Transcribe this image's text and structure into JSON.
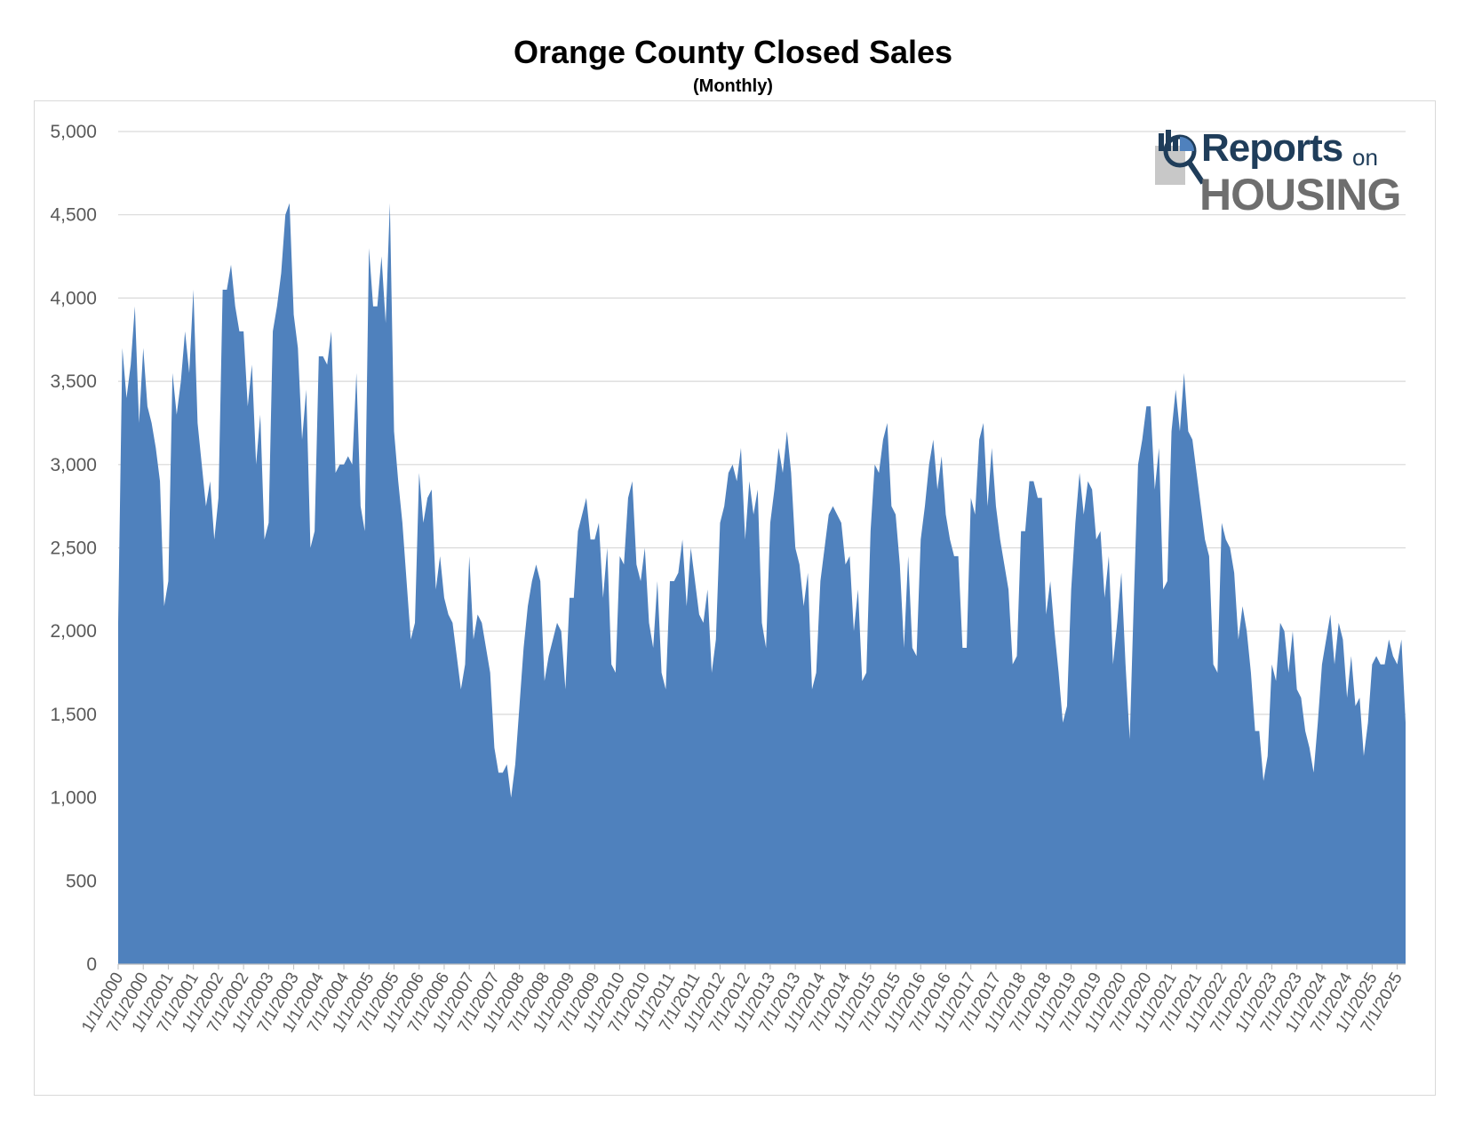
{
  "chart_data": {
    "type": "area",
    "title": "Orange County Closed Sales",
    "subtitle": "(Monthly)",
    "xlabel": "",
    "ylabel": "",
    "ylim": [
      0,
      5000
    ],
    "y_ticks": [
      "5,000",
      "4,500",
      "4,000",
      "3,500",
      "3,000",
      "2,500",
      "2,000",
      "1,500",
      "1,000",
      "500",
      "0"
    ],
    "y_tick_values": [
      5000,
      4500,
      4000,
      3500,
      3000,
      2500,
      2000,
      1500,
      1000,
      500,
      0
    ],
    "x_ticks": [
      "1/1/2000",
      "7/1/2000",
      "1/1/2001",
      "7/1/2001",
      "1/1/2002",
      "7/1/2002",
      "1/1/2003",
      "7/1/2003",
      "1/1/2004",
      "7/1/2004",
      "1/1/2005",
      "7/1/2005",
      "1/1/2006",
      "7/1/2006",
      "1/1/2007",
      "7/1/2007",
      "1/1/2008",
      "7/1/2008",
      "1/1/2009",
      "7/1/2009",
      "1/1/2010",
      "7/1/2010",
      "1/1/2011",
      "7/1/2011",
      "1/1/2012",
      "7/1/2012",
      "1/1/2013",
      "7/1/2013",
      "1/1/2014",
      "7/1/2014",
      "1/1/2015",
      "7/1/2015",
      "1/1/2016",
      "7/1/2016",
      "1/1/2017",
      "7/1/2017",
      "1/1/2018",
      "7/1/2018",
      "1/1/2019",
      "7/1/2019",
      "1/1/2020",
      "7/1/2020",
      "1/1/2021",
      "7/1/2021",
      "1/1/2022",
      "7/1/2022",
      "1/1/2023",
      "7/1/2023",
      "1/1/2024",
      "7/1/2024",
      "1/1/2025",
      "7/1/2025"
    ],
    "grid": true,
    "legend": "none",
    "color": "#4f81bd",
    "x_start": "2000-01",
    "x_end": "2025-09",
    "series": [
      {
        "values": [
          2050,
          3700,
          3400,
          3600,
          3950,
          3250,
          3700,
          3350,
          3250,
          3100,
          2900,
          2150,
          2300,
          3550,
          3300,
          3500,
          3800,
          3550,
          4050,
          3250,
          3000,
          2750,
          2900,
          2550,
          2800,
          4050,
          4050,
          4200,
          3950,
          3800,
          3800,
          3350,
          3600,
          3000,
          3300,
          2550,
          2650,
          3800,
          3950,
          4150,
          4500,
          4570,
          3900,
          3700,
          3150,
          3450,
          2500,
          2600,
          3650,
          3650,
          3600,
          3800,
          2950,
          3000,
          3000,
          3050,
          3000,
          3550,
          2750,
          2600,
          4300,
          3950,
          3950,
          4250,
          3850,
          4570,
          3200,
          2900,
          2650,
          2300,
          1950,
          2050,
          2950,
          2650,
          2800,
          2850,
          2250,
          2450,
          2200,
          2100,
          2050,
          1850,
          1650,
          1800,
          2450,
          1950,
          2100,
          2050,
          1900,
          1750,
          1300,
          1150,
          1150,
          1200,
          1000,
          1200,
          1550,
          1900,
          2150,
          2300,
          2400,
          2300,
          1700,
          1850,
          1950,
          2050,
          2000,
          1650,
          2200,
          2200,
          2600,
          2700,
          2800,
          2550,
          2550,
          2650,
          2200,
          2500,
          1800,
          1750,
          2450,
          2400,
          2800,
          2900,
          2400,
          2300,
          2500,
          2050,
          1900,
          2300,
          1750,
          1650,
          2300,
          2300,
          2350,
          2550,
          2150,
          2500,
          2300,
          2100,
          2050,
          2250,
          1750,
          1950,
          2650,
          2750,
          2950,
          3000,
          2900,
          3100,
          2550,
          2900,
          2700,
          2850,
          2050,
          1900,
          2650,
          2850,
          3100,
          2950,
          3200,
          2950,
          2500,
          2400,
          2150,
          2350,
          1650,
          1750,
          2300,
          2500,
          2700,
          2750,
          2700,
          2650,
          2400,
          2450,
          2000,
          2250,
          1700,
          1750,
          2600,
          3000,
          2950,
          3150,
          3250,
          2750,
          2700,
          2400,
          1900,
          2450,
          1900,
          1850,
          2550,
          2750,
          3000,
          3150,
          2850,
          3050,
          2700,
          2550,
          2450,
          2450,
          1900,
          1900,
          2800,
          2700,
          3150,
          3250,
          2750,
          3100,
          2750,
          2550,
          2400,
          2250,
          1800,
          1850,
          2600,
          2600,
          2900,
          2900,
          2800,
          2800,
          2100,
          2300,
          2000,
          1750,
          1450,
          1550,
          2250,
          2650,
          2950,
          2700,
          2900,
          2850,
          2550,
          2600,
          2200,
          2450,
          1800,
          2050,
          2350,
          1800,
          1350,
          2200,
          3000,
          3150,
          3350,
          3350,
          2850,
          3100,
          2250,
          2300,
          3200,
          3450,
          3200,
          3550,
          3200,
          3150,
          2950,
          2750,
          2550,
          2450,
          1800,
          1750,
          2650,
          2550,
          2500,
          2350,
          1950,
          2150,
          2000,
          1750,
          1400,
          1400,
          1100,
          1250,
          1800,
          1700,
          2050,
          2000,
          1750,
          2000,
          1650,
          1600,
          1400,
          1300,
          1150,
          1450,
          1800,
          1950,
          2100,
          1800,
          2050,
          1950,
          1600,
          1850,
          1550,
          1600,
          1250,
          1450,
          1800,
          1850,
          1800,
          1800,
          1950,
          1850,
          1800,
          1950,
          1450
        ]
      }
    ]
  },
  "logo": {
    "line1": "Reports",
    "line1_small": "on",
    "line2": "HOUSING"
  }
}
